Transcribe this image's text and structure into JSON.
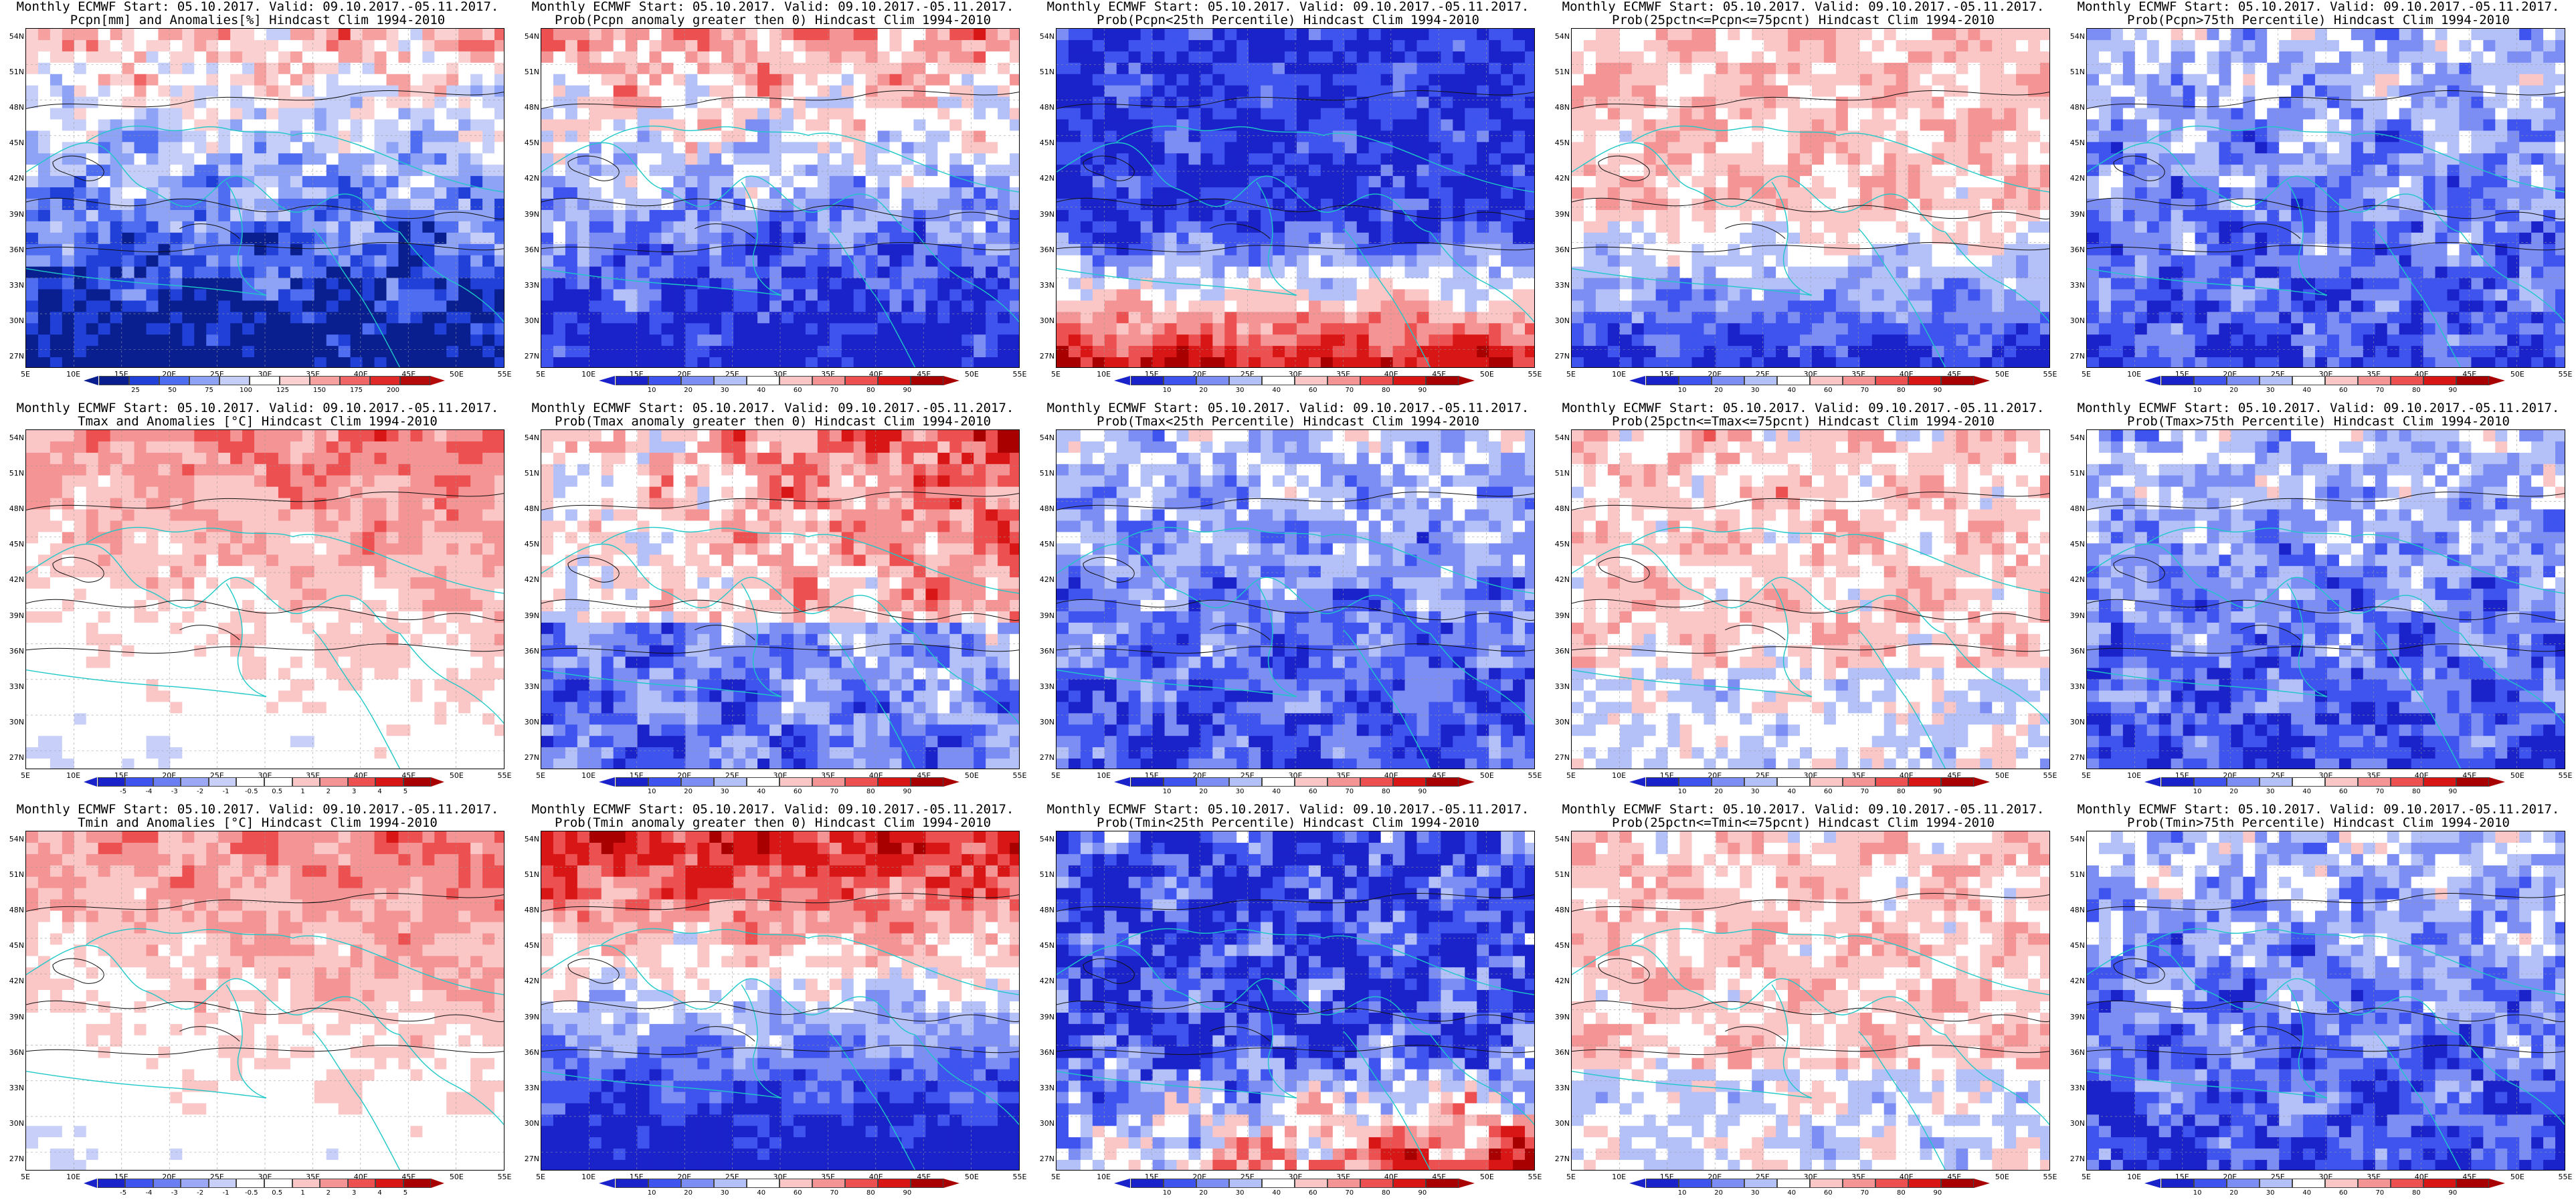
{
  "palettes": {
    "precip_anom": [
      "#0a1f8f",
      "#2040d8",
      "#4f6df0",
      "#8ea3f5",
      "#c4cef8",
      "#ffffff",
      "#fbd0d0",
      "#f6a0a0",
      "#f06666",
      "#e02a2a",
      "#b50b0b"
    ],
    "prob": [
      "#1a23c9",
      "#3f54ef",
      "#7c8ef4",
      "#b4c0f8",
      "#ffffff",
      "#fbc6c6",
      "#f49494",
      "#ec5050",
      "#d91616",
      "#a80000"
    ],
    "temp_anom": [
      "#1a23c9",
      "#3f54ef",
      "#6b7ff3",
      "#9aa8f6",
      "#c8d0f9",
      "#ffffff",
      "#ffffff",
      "#fbc6c6",
      "#f49494",
      "#ec5050",
      "#d91616",
      "#a80000"
    ]
  },
  "axes": {
    "lat_labels": [
      "54N",
      "51N",
      "48N",
      "45N",
      "42N",
      "39N",
      "36N",
      "33N",
      "30N",
      "27N"
    ],
    "lon_labels": [
      "5E",
      "10E",
      "15E",
      "20E",
      "25E",
      "30E",
      "35E",
      "40E",
      "45E",
      "50E",
      "55E"
    ]
  },
  "panels": [
    {
      "id": "r1c1",
      "line1": "Monthly ECMWF Start: 05.10.2017. Valid: 09.10.2017.-05.11.2017.",
      "line2": "Pcpn[mm] and Anomalies[%] Hindcast Clim 1994-2010",
      "palette": "precip_anom",
      "ticks": [
        "25",
        "50",
        "75",
        "100",
        "125",
        "150",
        "175",
        "200"
      ],
      "pattern": "wet_north_dry_south"
    },
    {
      "id": "r1c2",
      "line1": "Monthly ECMWF Start: 05.10.2017. Valid: 09.10.2017.-05.11.2017.",
      "line2": "Prob(Pcpn anomaly greater then 0) Hindcast Clim 1994-2010",
      "palette": "prob",
      "ticks": [
        "10",
        "20",
        "30",
        "40",
        "60",
        "70",
        "80",
        "90"
      ],
      "pattern": "wet_north_dry_south"
    },
    {
      "id": "r1c3",
      "line1": "Monthly ECMWF Start: 05.10.2017. Valid: 09.10.2017.-05.11.2017.",
      "line2": "Prob(Pcpn<25th Percentile) Hindcast Clim 1994-2010",
      "palette": "prob",
      "ticks": [
        "10",
        "20",
        "30",
        "40",
        "60",
        "70",
        "80",
        "90"
      ],
      "pattern": "blue_north_red_south"
    },
    {
      "id": "r1c4",
      "line1": "Monthly ECMWF Start: 05.10.2017. Valid: 09.10.2017.-05.11.2017.",
      "line2": "Prob(25pctn<=Pcpn<=75pcnt) Hindcast Clim 1994-2010",
      "palette": "prob",
      "ticks": [
        "10",
        "20",
        "30",
        "40",
        "60",
        "70",
        "80",
        "90"
      ],
      "pattern": "white_north_blue_south"
    },
    {
      "id": "r1c5",
      "line1": "Monthly ECMWF Start: 05.10.2017. Valid: 09.10.2017.-05.11.2017.",
      "line2": "Prob(Pcpn>75th Percentile) Hindcast Clim 1994-2010",
      "palette": "prob",
      "ticks": [
        "10",
        "20",
        "30",
        "40",
        "60",
        "70",
        "80",
        "90"
      ],
      "pattern": "mostly_blue"
    },
    {
      "id": "r2c1",
      "line1": "Monthly ECMWF Start: 05.10.2017. Valid: 09.10.2017.-05.11.2017.",
      "line2": "Tmax and Anomalies [°C] Hindcast Clim 1994-2010",
      "palette": "temp_anom",
      "ticks": [
        "-5",
        "-4",
        "-3",
        "-2",
        "-1",
        "-0.5",
        "0.5",
        "1",
        "2",
        "3",
        "4",
        "5"
      ],
      "pattern": "warm_north_cool_south_light"
    },
    {
      "id": "r2c2",
      "line1": "Monthly ECMWF Start: 05.10.2017. Valid: 09.10.2017.-05.11.2017.",
      "line2": "Prob(Tmax anomaly greater then 0) Hindcast Clim 1994-2010",
      "palette": "prob",
      "ticks": [
        "10",
        "20",
        "30",
        "40",
        "60",
        "70",
        "80",
        "90"
      ],
      "pattern": "red_northeast_mixed"
    },
    {
      "id": "r2c3",
      "line1": "Monthly ECMWF Start: 05.10.2017. Valid: 09.10.2017.-05.11.2017.",
      "line2": "Prob(Tmax<25th Percentile) Hindcast Clim 1994-2010",
      "palette": "prob",
      "ticks": [
        "10",
        "20",
        "30",
        "40",
        "60",
        "70",
        "80",
        "90"
      ],
      "pattern": "mostly_blue"
    },
    {
      "id": "r2c4",
      "line1": "Monthly ECMWF Start: 05.10.2017. Valid: 09.10.2017.-05.11.2017.",
      "line2": "Prob(25pctn<=Tmax<=75pcnt) Hindcast Clim 1994-2010",
      "palette": "prob",
      "ticks": [
        "10",
        "20",
        "30",
        "40",
        "60",
        "70",
        "80",
        "90"
      ],
      "pattern": "mostly_white_pink"
    },
    {
      "id": "r2c5",
      "line1": "Monthly ECMWF Start: 05.10.2017. Valid: 09.10.2017.-05.11.2017.",
      "line2": "Prob(Tmax>75th Percentile) Hindcast Clim 1994-2010",
      "palette": "prob",
      "ticks": [
        "10",
        "20",
        "30",
        "40",
        "60",
        "70",
        "80",
        "90"
      ],
      "pattern": "mostly_blue"
    },
    {
      "id": "r3c1",
      "line1": "Monthly ECMWF Start: 05.10.2017. Valid: 09.10.2017.-05.11.2017.",
      "line2": "Tmin and Anomalies [°C] Hindcast Clim 1994-2010",
      "palette": "temp_anom",
      "ticks": [
        "-5",
        "-4",
        "-3",
        "-2",
        "-1",
        "-0.5",
        "0.5",
        "1",
        "2",
        "3",
        "4",
        "5"
      ],
      "pattern": "warm_north_cool_south_light"
    },
    {
      "id": "r3c2",
      "line1": "Monthly ECMWF Start: 05.10.2017. Valid: 09.10.2017.-05.11.2017.",
      "line2": "Prob(Tmin anomaly greater then 0) Hindcast Clim 1994-2010",
      "palette": "prob",
      "ticks": [
        "10",
        "20",
        "30",
        "40",
        "60",
        "70",
        "80",
        "90"
      ],
      "pattern": "red_north_blue_south"
    },
    {
      "id": "r3c3",
      "line1": "Monthly ECMWF Start: 05.10.2017. Valid: 09.10.2017.-05.11.2017.",
      "line2": "Prob(Tmin<25th Percentile) Hindcast Clim 1994-2010",
      "palette": "prob",
      "ticks": [
        "10",
        "20",
        "30",
        "40",
        "60",
        "70",
        "80",
        "90"
      ],
      "pattern": "blue_north_mixed_south"
    },
    {
      "id": "r3c4",
      "line1": "Monthly ECMWF Start: 05.10.2017. Valid: 09.10.2017.-05.11.2017.",
      "line2": "Prob(25pctn<=Tmin<=75pcnt) Hindcast Clim 1994-2010",
      "palette": "prob",
      "ticks": [
        "10",
        "20",
        "30",
        "40",
        "60",
        "70",
        "80",
        "90"
      ],
      "pattern": "mostly_white_pink"
    },
    {
      "id": "r3c5",
      "line1": "Monthly ECMWF Start: 05.10.2017. Valid: 09.10.2017.-05.11.2017.",
      "line2": "Prob(Tmin>75th Percentile) Hindcast Clim 1994-2010",
      "palette": "prob",
      "ticks": [
        "10",
        "20",
        "30",
        "40",
        "60",
        "70",
        "80",
        "90"
      ],
      "pattern": "mostly_blue"
    }
  ]
}
